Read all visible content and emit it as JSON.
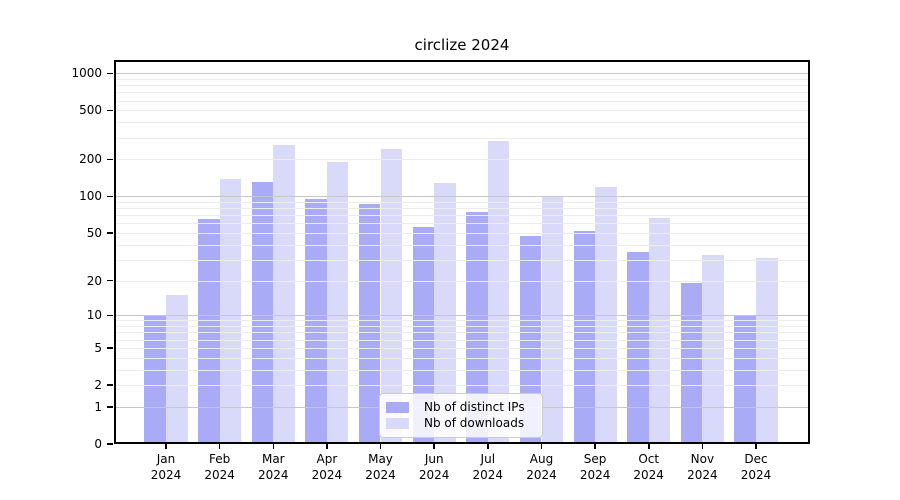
{
  "title": "circlize 2024",
  "legend": {
    "items": [
      {
        "label": "Nb of distinct IPs",
        "color": "#a9abf6"
      },
      {
        "label": "Nb of downloads",
        "color": "#d9daf9"
      }
    ]
  },
  "axes": {
    "x_months": [
      "Jan",
      "Feb",
      "Mar",
      "Apr",
      "May",
      "Jun",
      "Jul",
      "Aug",
      "Sep",
      "Oct",
      "Nov",
      "Dec"
    ],
    "x_year": "2024"
  },
  "chart_data": {
    "type": "bar",
    "title": "circlize 2024",
    "categories": [
      "Jan 2024",
      "Feb 2024",
      "Mar 2024",
      "Apr 2024",
      "May 2024",
      "Jun 2024",
      "Jul 2024",
      "Aug 2024",
      "Sep 2024",
      "Oct 2024",
      "Nov 2024",
      "Dec 2024"
    ],
    "series": [
      {
        "name": "Nb of distinct IPs",
        "color": "#a9abf6",
        "values": [
          10,
          65,
          130,
          95,
          86,
          56,
          75,
          47,
          52,
          35,
          19,
          10
        ]
      },
      {
        "name": "Nb of downloads",
        "color": "#d9daf9",
        "values": [
          15,
          138,
          260,
          190,
          245,
          128,
          285,
          100,
          120,
          66,
          33,
          31
        ]
      }
    ],
    "y_scale": "log10(1+x)",
    "y_ticks": [
      1000,
      500,
      200,
      100,
      50,
      20,
      10,
      5,
      2,
      1,
      0
    ],
    "ylim": [
      0,
      1000
    ],
    "grid": {
      "orientation": "horizontal",
      "major_at": [
        1,
        10,
        100,
        1000
      ],
      "minor": "2-9 per decade",
      "major_color": "#c7c7c7",
      "minor_color": "#ececec"
    },
    "legend_position": "lower center",
    "xlabel": "",
    "ylabel": ""
  }
}
